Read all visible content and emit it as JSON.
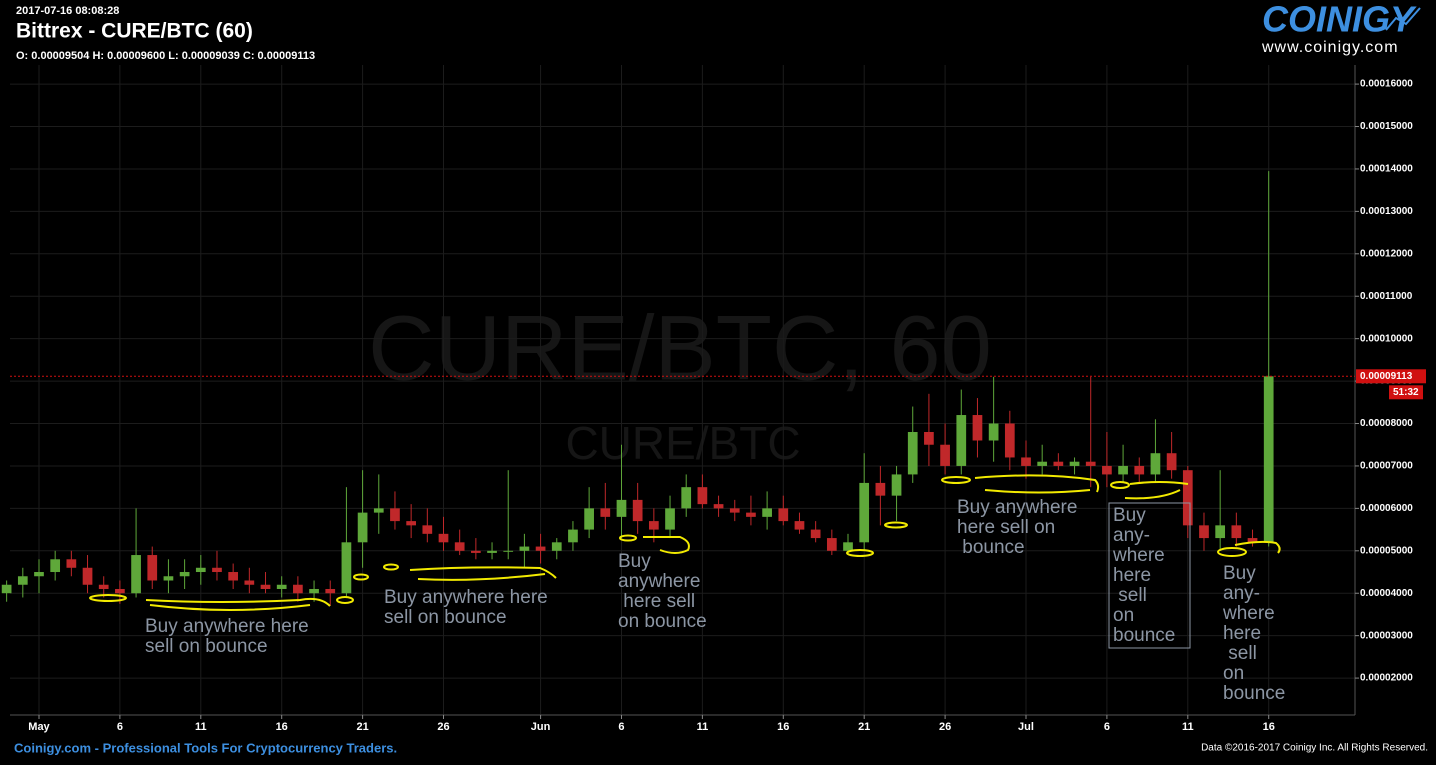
{
  "header": {
    "timestamp": "2017-07-16 08:08:28",
    "title": "Bittrex - CURE/BTC (60)",
    "ohlc": "O: 0.00009504 H: 0.00009600 L: 0.00009039 C: 0.00009113",
    "logo": "COINIGY",
    "site": "www.coinigy.com"
  },
  "footer": {
    "left": "Coinigy.com - Professional Tools For Cryptocurrency Traders.",
    "right": "Data ©2016-2017 Coinigy Inc. All Rights Reserved."
  },
  "chart_data": {
    "type": "candlestick",
    "watermark": "CURE/BTC, 60",
    "watermark_sub": "CURE/BTC",
    "x": [
      "2017-04-29",
      "2017-04-30",
      "2017-05-01",
      "2017-05-02",
      "2017-05-03",
      "2017-05-04",
      "2017-05-05",
      "2017-05-06",
      "2017-05-07",
      "2017-05-08",
      "2017-05-09",
      "2017-05-10",
      "2017-05-11",
      "2017-05-12",
      "2017-05-13",
      "2017-05-14",
      "2017-05-15",
      "2017-05-16",
      "2017-05-17",
      "2017-05-18",
      "2017-05-19",
      "2017-05-20",
      "2017-05-21",
      "2017-05-22",
      "2017-05-23",
      "2017-05-24",
      "2017-05-25",
      "2017-05-26",
      "2017-05-27",
      "2017-05-28",
      "2017-05-29",
      "2017-05-30",
      "2017-05-31",
      "2017-06-01",
      "2017-06-02",
      "2017-06-03",
      "2017-06-04",
      "2017-06-05",
      "2017-06-06",
      "2017-06-07",
      "2017-06-08",
      "2017-06-09",
      "2017-06-10",
      "2017-06-11",
      "2017-06-12",
      "2017-06-13",
      "2017-06-14",
      "2017-06-15",
      "2017-06-16",
      "2017-06-17",
      "2017-06-18",
      "2017-06-19",
      "2017-06-20",
      "2017-06-21",
      "2017-06-22",
      "2017-06-23",
      "2017-06-24",
      "2017-06-25",
      "2017-06-26",
      "2017-06-27",
      "2017-06-28",
      "2017-06-29",
      "2017-06-30",
      "2017-07-01",
      "2017-07-02",
      "2017-07-03",
      "2017-07-04",
      "2017-07-05",
      "2017-07-06",
      "2017-07-07",
      "2017-07-08",
      "2017-07-09",
      "2017-07-10",
      "2017-07-11",
      "2017-07-12",
      "2017-07-13",
      "2017-07-14",
      "2017-07-15",
      "2017-07-16"
    ],
    "open": [
      4e-05,
      4.2e-05,
      4.4e-05,
      4.5e-05,
      4.8e-05,
      4.6e-05,
      4.2e-05,
      4.1e-05,
      4e-05,
      4.9e-05,
      4.3e-05,
      4.4e-05,
      4.5e-05,
      4.6e-05,
      4.5e-05,
      4.3e-05,
      4.2e-05,
      4.1e-05,
      4.2e-05,
      4e-05,
      4.1e-05,
      4e-05,
      5.2e-05,
      5.9e-05,
      6e-05,
      5.7e-05,
      5.6e-05,
      5.4e-05,
      5.2e-05,
      5e-05,
      4.95e-05,
      5e-05,
      5e-05,
      5.1e-05,
      5e-05,
      5.2e-05,
      5.5e-05,
      6e-05,
      5.8e-05,
      6.2e-05,
      5.7e-05,
      5.5e-05,
      6e-05,
      6.5e-05,
      6.1e-05,
      6e-05,
      5.9e-05,
      5.8e-05,
      6e-05,
      5.7e-05,
      5.5e-05,
      5.3e-05,
      5e-05,
      5.2e-05,
      6.6e-05,
      6.3e-05,
      6.8e-05,
      7.8e-05,
      7.5e-05,
      7e-05,
      8.2e-05,
      7.6e-05,
      8e-05,
      7.2e-05,
      7e-05,
      7.1e-05,
      7e-05,
      7.1e-05,
      7e-05,
      6.8e-05,
      7e-05,
      6.8e-05,
      7.3e-05,
      6.9e-05,
      5.6e-05,
      5.3e-05,
      5.6e-05,
      5.3e-05,
      5.2e-05
    ],
    "high": [
      4.3e-05,
      4.6e-05,
      4.8e-05,
      5e-05,
      5e-05,
      4.9e-05,
      4.4e-05,
      4.3e-05,
      6e-05,
      5.1e-05,
      4.8e-05,
      4.8e-05,
      4.9e-05,
      5e-05,
      4.7e-05,
      4.6e-05,
      4.5e-05,
      4.4e-05,
      4.4e-05,
      4.3e-05,
      4.3e-05,
      6.5e-05,
      6.9e-05,
      6.8e-05,
      6.4e-05,
      6.1e-05,
      6e-05,
      5.8e-05,
      5.5e-05,
      5.3e-05,
      5.2e-05,
      6.9e-05,
      5.4e-05,
      5.4e-05,
      5.3e-05,
      5.7e-05,
      6.5e-05,
      6.6e-05,
      7.5e-05,
      6.6e-05,
      6e-05,
      6.3e-05,
      6.8e-05,
      6.8e-05,
      6.3e-05,
      6.2e-05,
      6.3e-05,
      6.4e-05,
      6.3e-05,
      5.9e-05,
      5.7e-05,
      5.5e-05,
      5.4e-05,
      7.3e-05,
      7e-05,
      7e-05,
      8.4e-05,
      8.7e-05,
      8e-05,
      8.8e-05,
      8.6e-05,
      9.1e-05,
      8.3e-05,
      7.6e-05,
      7.5e-05,
      7.3e-05,
      7.2e-05,
      9.1e-05,
      7.8e-05,
      7.5e-05,
      7.2e-05,
      8.1e-05,
      7.8e-05,
      7e-05,
      5.9e-05,
      6.9e-05,
      5.9e-05,
      5.5e-05,
      0.0001395
    ],
    "low": [
      3.8e-05,
      3.9e-05,
      4e-05,
      4.3e-05,
      4.4e-05,
      4e-05,
      3.9e-05,
      3.75e-05,
      3.9e-05,
      4.1e-05,
      4e-05,
      4.1e-05,
      4.2e-05,
      4.3e-05,
      4.1e-05,
      4e-05,
      4e-05,
      3.9e-05,
      3.8e-05,
      3.8e-05,
      3.7e-05,
      3.9e-05,
      4.6e-05,
      5.4e-05,
      5.5e-05,
      5.3e-05,
      5.2e-05,
      5e-05,
      4.9e-05,
      4.8e-05,
      4.8e-05,
      4.8e-05,
      4.6e-05,
      4.7e-05,
      4.8e-05,
      5e-05,
      5.3e-05,
      5.5e-05,
      5.3e-05,
      5.4e-05,
      5.2e-05,
      5.3e-05,
      5.8e-05,
      6e-05,
      5.8e-05,
      5.7e-05,
      5.6e-05,
      5.5e-05,
      5.6e-05,
      5.4e-05,
      5.2e-05,
      4.9e-05,
      4.9e-05,
      5e-05,
      5.6e-05,
      5.7e-05,
      6.6e-05,
      7e-05,
      6.8e-05,
      6.8e-05,
      7.2e-05,
      7.1e-05,
      6.9e-05,
      6.7e-05,
      6.8e-05,
      6.9e-05,
      6.8e-05,
      6.5e-05,
      6.5e-05,
      6.6e-05,
      6.6e-05,
      6.6e-05,
      6.7e-05,
      5.3e-05,
      5e-05,
      5e-05,
      5.1e-05,
      5.1e-05,
      5.1e-05
    ],
    "close": [
      4.2e-05,
      4.4e-05,
      4.5e-05,
      4.8e-05,
      4.6e-05,
      4.2e-05,
      4.1e-05,
      4e-05,
      4.9e-05,
      4.3e-05,
      4.4e-05,
      4.5e-05,
      4.6e-05,
      4.5e-05,
      4.3e-05,
      4.2e-05,
      4.1e-05,
      4.2e-05,
      4e-05,
      4.1e-05,
      4e-05,
      5.2e-05,
      5.9e-05,
      6e-05,
      5.7e-05,
      5.6e-05,
      5.4e-05,
      5.2e-05,
      5e-05,
      4.95e-05,
      5e-05,
      5e-05,
      5.1e-05,
      5e-05,
      5.2e-05,
      5.5e-05,
      6e-05,
      5.8e-05,
      6.2e-05,
      5.7e-05,
      5.5e-05,
      6e-05,
      6.5e-05,
      6.1e-05,
      6e-05,
      5.9e-05,
      5.8e-05,
      6e-05,
      5.7e-05,
      5.5e-05,
      5.3e-05,
      5e-05,
      5.2e-05,
      6.6e-05,
      6.3e-05,
      6.8e-05,
      7.8e-05,
      7.5e-05,
      7e-05,
      8.2e-05,
      7.6e-05,
      8e-05,
      7.2e-05,
      7e-05,
      7.1e-05,
      7e-05,
      7.1e-05,
      7e-05,
      6.8e-05,
      7e-05,
      6.8e-05,
      7.3e-05,
      6.9e-05,
      5.6e-05,
      5.3e-05,
      5.6e-05,
      5.3e-05,
      5.2e-05,
      9.113e-05
    ],
    "up_color": "#5fa83a",
    "down_color": "#c0282a",
    "xlim": [
      "2017-04-29T05:00",
      "2017-07-21T08:00"
    ],
    "xticks": [
      {
        "value": "2017-05-01",
        "label": "May"
      },
      {
        "value": "2017-05-06",
        "label": "6"
      },
      {
        "value": "2017-05-11",
        "label": "11"
      },
      {
        "value": "2017-05-16",
        "label": "16"
      },
      {
        "value": "2017-05-21",
        "label": "21"
      },
      {
        "value": "2017-05-26",
        "label": "26"
      },
      {
        "value": "2017-06-01",
        "label": "Jun"
      },
      {
        "value": "2017-06-06",
        "label": "6"
      },
      {
        "value": "2017-06-11",
        "label": "11"
      },
      {
        "value": "2017-06-16",
        "label": "16"
      },
      {
        "value": "2017-06-21",
        "label": "21"
      },
      {
        "value": "2017-06-26",
        "label": "26"
      },
      {
        "value": "2017-07-01",
        "label": "Jul"
      },
      {
        "value": "2017-07-06",
        "label": "6"
      },
      {
        "value": "2017-07-11",
        "label": "11"
      },
      {
        "value": "2017-07-16",
        "label": "16"
      }
    ],
    "ylim": [
      1.13e-05,
      0.0001645
    ],
    "yticks": [
      {
        "value": 2e-05,
        "label": "0.00002000"
      },
      {
        "value": 3e-05,
        "label": "0.00003000"
      },
      {
        "value": 4e-05,
        "label": "0.00004000"
      },
      {
        "value": 5e-05,
        "label": "0.00005000"
      },
      {
        "value": 6e-05,
        "label": "0.00006000"
      },
      {
        "value": 7e-05,
        "label": "0.00007000"
      },
      {
        "value": 8e-05,
        "label": "0.00008000"
      },
      {
        "value": 9e-05,
        "label": "0.00009000"
      },
      {
        "value": 0.0001,
        "label": "0.00010000"
      },
      {
        "value": 0.00011,
        "label": "0.00011000"
      },
      {
        "value": 0.00012,
        "label": "0.00012000"
      },
      {
        "value": 0.00013,
        "label": "0.00013000"
      },
      {
        "value": 0.00014,
        "label": "0.00014000"
      },
      {
        "value": 0.00015,
        "label": "0.00015000"
      },
      {
        "value": 0.00016,
        "label": "0.00016000"
      }
    ],
    "grid": true,
    "last_price": 9.113e-05,
    "countdown": "51:32",
    "annotations": [
      [
        "Buy anywhere here",
        "sell on bounce"
      ],
      [
        "Buy anywhere here",
        "sell on bounce"
      ],
      [
        "Buy",
        "anywhere",
        " here sell",
        "on bounce"
      ],
      [
        "Buy anywhere",
        "here sell on",
        " bounce"
      ],
      [
        "Buy",
        "any-",
        "where",
        "here",
        " sell",
        "on",
        "bounce"
      ],
      [
        "Buy",
        "any-",
        "where",
        "here",
        " sell",
        "on",
        "bounce"
      ]
    ]
  }
}
